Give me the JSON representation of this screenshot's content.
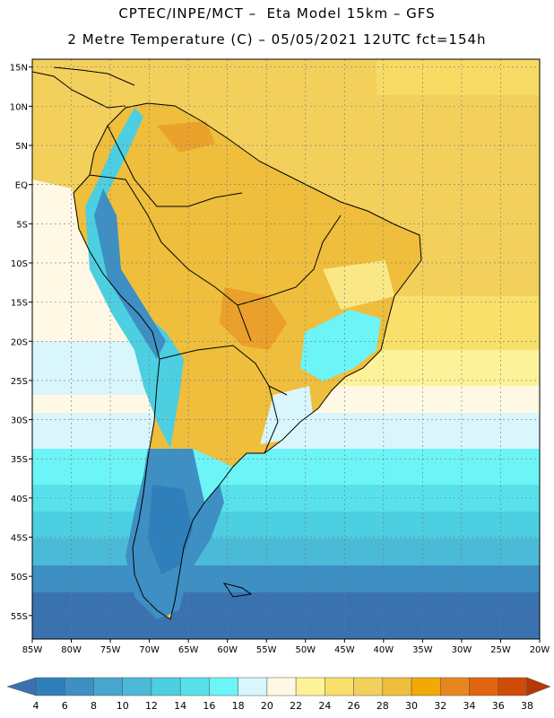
{
  "header": {
    "line1": "CPTEC/INPE/MCT –  Eta Model 15km – GFS",
    "line2": "2 Metre Temperature (C) – 05/05/2021 12UTC fct=154h"
  },
  "map": {
    "lon_range": [
      -85,
      -20
    ],
    "lat_range": [
      -58,
      16
    ],
    "lat_labels": [
      "15N",
      "10N",
      "5N",
      "EQ",
      "5S",
      "10S",
      "15S",
      "20S",
      "25S",
      "30S",
      "35S",
      "40S",
      "45S",
      "50S",
      "55S"
    ],
    "lon_labels": [
      "85W",
      "80W",
      "75W",
      "70W",
      "65W",
      "60W",
      "55W",
      "50W",
      "45W",
      "40W",
      "35W",
      "30W",
      "25W",
      "20W"
    ]
  },
  "colorbar": {
    "labels": [
      "4",
      "6",
      "8",
      "10",
      "12",
      "14",
      "16",
      "18",
      "20",
      "22",
      "24",
      "26",
      "28",
      "30",
      "32",
      "34",
      "36",
      "38"
    ],
    "colors": [
      "#3a72b0",
      "#2f7fba",
      "#3d8fc4",
      "#48a6cf",
      "#4bbad7",
      "#4ccfe0",
      "#58e1ea",
      "#6cf4f7",
      "#d8f6fb",
      "#fff8e4",
      "#fcf29a",
      "#f8e06a",
      "#f3d05c",
      "#eebe3c",
      "#f2a805",
      "#e8861e",
      "#e3640e",
      "#cf4b08",
      "#b53806"
    ]
  }
}
